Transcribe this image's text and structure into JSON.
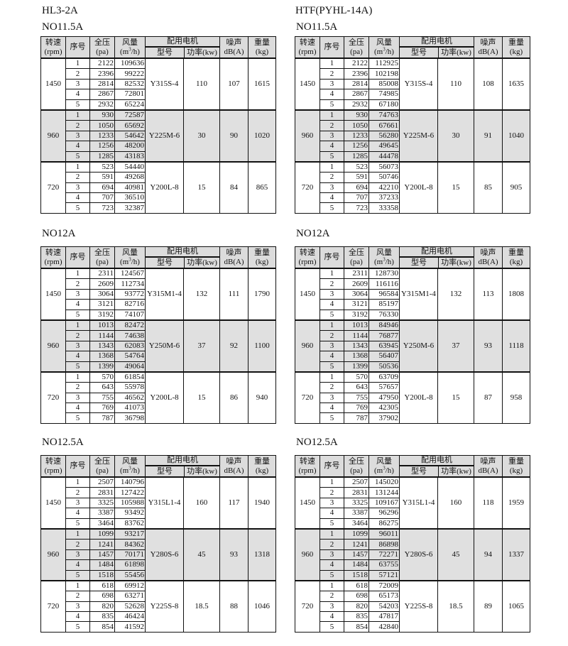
{
  "columns": {
    "left_series": "HL3-2A",
    "right_series": "HTF(PYHL-14A)"
  },
  "headers": {
    "rpm": "转速",
    "rpm_unit": "(rpm)",
    "no": "序号",
    "pressure": "全压",
    "pressure_unit": "(pa)",
    "flow": "风量",
    "flow_unit_a": "(m",
    "flow_unit_sup": "3",
    "flow_unit_b": "/h)",
    "motor": "配用电机",
    "motor_model": "型号",
    "motor_power": "功率(kw)",
    "noise": "噪声",
    "noise_unit": "dB(A)",
    "weight": "重量",
    "weight_unit": "(kg)"
  },
  "shade_color": "#e0e0e0",
  "tables": [
    {
      "model": "NO11.5A",
      "groups": [
        {
          "rpm": "1450",
          "motor": "Y315S-4",
          "power": "110",
          "noise": "107",
          "weight": "1615",
          "rows": [
            [
              "1",
              "2122",
              "109636"
            ],
            [
              "2",
              "2396",
              "99222"
            ],
            [
              "3",
              "2814",
              "82532"
            ],
            [
              "4",
              "2867",
              "72801"
            ],
            [
              "5",
              "2932",
              "65224"
            ]
          ]
        },
        {
          "rpm": "960",
          "motor": "Y225M-6",
          "power": "30",
          "noise": "90",
          "weight": "1020",
          "rows": [
            [
              "1",
              "930",
              "72587"
            ],
            [
              "2",
              "1050",
              "65692"
            ],
            [
              "3",
              "1233",
              "54642"
            ],
            [
              "4",
              "1256",
              "48200"
            ],
            [
              "5",
              "1285",
              "43183"
            ]
          ]
        },
        {
          "rpm": "720",
          "motor": "Y200L-8",
          "power": "15",
          "noise": "84",
          "weight": "865",
          "rows": [
            [
              "1",
              "523",
              "54440"
            ],
            [
              "2",
              "591",
              "49268"
            ],
            [
              "3",
              "694",
              "40981"
            ],
            [
              "4",
              "707",
              "36510"
            ],
            [
              "5",
              "723",
              "32387"
            ]
          ]
        }
      ]
    },
    {
      "model": "NO11.5A",
      "groups": [
        {
          "rpm": "1450",
          "motor": "Y315S-4",
          "power": "110",
          "noise": "108",
          "weight": "1635",
          "rows": [
            [
              "1",
              "2122",
              "112925"
            ],
            [
              "2",
              "2396",
              "102198"
            ],
            [
              "3",
              "2814",
              "85008"
            ],
            [
              "4",
              "2867",
              "74985"
            ],
            [
              "5",
              "2932",
              "67180"
            ]
          ]
        },
        {
          "rpm": "960",
          "motor": "Y225M-6",
          "power": "30",
          "noise": "91",
          "weight": "1040",
          "rows": [
            [
              "1",
              "930",
              "74763"
            ],
            [
              "2",
              "1050",
              "67661"
            ],
            [
              "3",
              "1233",
              "56280"
            ],
            [
              "4",
              "1256",
              "49645"
            ],
            [
              "5",
              "1285",
              "44478"
            ]
          ]
        },
        {
          "rpm": "720",
          "motor": "Y200L-8",
          "power": "15",
          "noise": "85",
          "weight": "905",
          "rows": [
            [
              "1",
              "523",
              "56073"
            ],
            [
              "2",
              "591",
              "50746"
            ],
            [
              "3",
              "694",
              "42210"
            ],
            [
              "4",
              "707",
              "37233"
            ],
            [
              "5",
              "723",
              "33358"
            ]
          ]
        }
      ]
    },
    {
      "model": "NO12A",
      "groups": [
        {
          "rpm": "1450",
          "motor": "Y315M1-4",
          "power": "132",
          "noise": "111",
          "weight": "1790",
          "rows": [
            [
              "1",
              "2311",
              "124567"
            ],
            [
              "2",
              "2609",
              "112734"
            ],
            [
              "3",
              "3064",
              "93772"
            ],
            [
              "4",
              "3121",
              "82716"
            ],
            [
              "5",
              "3192",
              "74107"
            ]
          ]
        },
        {
          "rpm": "960",
          "motor": "Y250M-6",
          "power": "37",
          "noise": "92",
          "weight": "1100",
          "rows": [
            [
              "1",
              "1013",
              "82472"
            ],
            [
              "2",
              "1144",
              "74638"
            ],
            [
              "3",
              "1343",
              "62083"
            ],
            [
              "4",
              "1368",
              "54764"
            ],
            [
              "5",
              "1399",
              "49064"
            ]
          ]
        },
        {
          "rpm": "720",
          "motor": "Y200L-8",
          "power": "15",
          "noise": "86",
          "weight": "940",
          "rows": [
            [
              "1",
              "570",
              "61854"
            ],
            [
              "2",
              "643",
              "55978"
            ],
            [
              "3",
              "755",
              "46562"
            ],
            [
              "4",
              "769",
              "41073"
            ],
            [
              "5",
              "787",
              "36798"
            ]
          ]
        }
      ]
    },
    {
      "model": "NO12A",
      "groups": [
        {
          "rpm": "1450",
          "motor": "Y315M1-4",
          "power": "132",
          "noise": "113",
          "weight": "1808",
          "rows": [
            [
              "1",
              "2311",
              "128730"
            ],
            [
              "2",
              "2609",
              "116116"
            ],
            [
              "3",
              "3064",
              "96584"
            ],
            [
              "4",
              "3121",
              "85197"
            ],
            [
              "5",
              "3192",
              "76330"
            ]
          ]
        },
        {
          "rpm": "960",
          "motor": "Y250M-6",
          "power": "37",
          "noise": "93",
          "weight": "1118",
          "rows": [
            [
              "1",
              "1013",
              "84946"
            ],
            [
              "2",
              "1144",
              "76877"
            ],
            [
              "3",
              "1343",
              "63945"
            ],
            [
              "4",
              "1368",
              "56407"
            ],
            [
              "5",
              "1399",
              "50536"
            ]
          ]
        },
        {
          "rpm": "720",
          "motor": "Y200L-8",
          "power": "15",
          "noise": "87",
          "weight": "958",
          "rows": [
            [
              "1",
              "570",
              "63709"
            ],
            [
              "2",
              "643",
              "57657"
            ],
            [
              "3",
              "755",
              "47950"
            ],
            [
              "4",
              "769",
              "42305"
            ],
            [
              "5",
              "787",
              "37902"
            ]
          ]
        }
      ]
    },
    {
      "model": "NO12.5A",
      "groups": [
        {
          "rpm": "1450",
          "motor": "Y315L1-4",
          "power": "160",
          "noise": "117",
          "weight": "1940",
          "rows": [
            [
              "1",
              "2507",
              "140796"
            ],
            [
              "2",
              "2831",
              "127422"
            ],
            [
              "3",
              "3325",
              "105988"
            ],
            [
              "4",
              "3387",
              "93492"
            ],
            [
              "5",
              "3464",
              "83762"
            ]
          ]
        },
        {
          "rpm": "960",
          "motor": "Y280S-6",
          "power": "45",
          "noise": "93",
          "weight": "1318",
          "rows": [
            [
              "1",
              "1099",
              "93217"
            ],
            [
              "2",
              "1241",
              "84362"
            ],
            [
              "3",
              "1457",
              "70171"
            ],
            [
              "4",
              "1484",
              "61898"
            ],
            [
              "5",
              "1518",
              "55456"
            ]
          ]
        },
        {
          "rpm": "720",
          "motor": "Y225S-8",
          "power": "18.5",
          "noise": "88",
          "weight": "1046",
          "rows": [
            [
              "1",
              "618",
              "69912"
            ],
            [
              "2",
              "698",
              "63271"
            ],
            [
              "3",
              "820",
              "52628"
            ],
            [
              "4",
              "835",
              "46424"
            ],
            [
              "5",
              "854",
              "41592"
            ]
          ]
        }
      ]
    },
    {
      "model": "NO12.5A",
      "groups": [
        {
          "rpm": "1450",
          "motor": "Y315L1-4",
          "power": "160",
          "noise": "118",
          "weight": "1959",
          "rows": [
            [
              "1",
              "2507",
              "145020"
            ],
            [
              "2",
              "2831",
              "131244"
            ],
            [
              "3",
              "3325",
              "109167"
            ],
            [
              "4",
              "3387",
              "96296"
            ],
            [
              "5",
              "3464",
              "86275"
            ]
          ]
        },
        {
          "rpm": "960",
          "motor": "Y280S-6",
          "power": "45",
          "noise": "94",
          "weight": "1337",
          "rows": [
            [
              "1",
              "1099",
              "96011"
            ],
            [
              "2",
              "1241",
              "86898"
            ],
            [
              "3",
              "1457",
              "72271"
            ],
            [
              "4",
              "1484",
              "63755"
            ],
            [
              "5",
              "1518",
              "57121"
            ]
          ]
        },
        {
          "rpm": "720",
          "motor": "Y225S-8",
          "power": "18.5",
          "noise": "89",
          "weight": "1065",
          "rows": [
            [
              "1",
              "618",
              "72009"
            ],
            [
              "2",
              "698",
              "65173"
            ],
            [
              "3",
              "820",
              "54203"
            ],
            [
              "4",
              "835",
              "47817"
            ],
            [
              "5",
              "854",
              "42840"
            ]
          ]
        }
      ]
    }
  ]
}
